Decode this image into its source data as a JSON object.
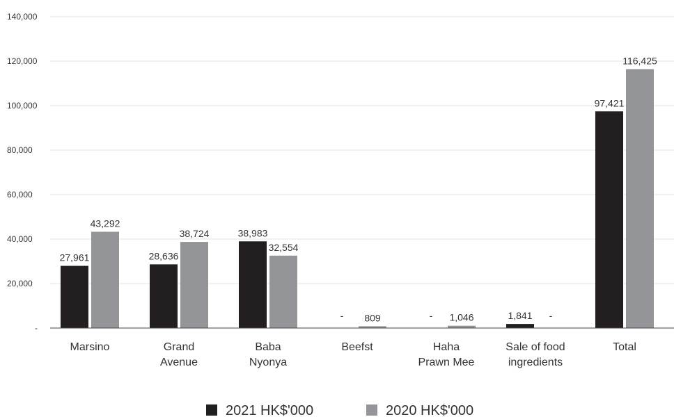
{
  "chart_data": {
    "type": "bar",
    "categories": [
      [
        "Marsino"
      ],
      [
        "Grand",
        "Avenue"
      ],
      [
        "Baba",
        "Nyonya"
      ],
      [
        "Beefst"
      ],
      [
        "Haha",
        "Prawn Mee"
      ],
      [
        "Sale of food",
        "ingredients"
      ],
      [
        "Total"
      ]
    ],
    "series": [
      {
        "name": "2021 HK$'000",
        "color": "#231f20",
        "values": [
          27961,
          28636,
          38983,
          null,
          null,
          1841,
          97421
        ],
        "labels": [
          "27,961",
          "28,636",
          "38,983",
          "-",
          "-",
          "1,841",
          "97,421"
        ]
      },
      {
        "name": "2020 HK$'000",
        "color": "#939598",
        "values": [
          43292,
          38724,
          32554,
          809,
          1046,
          null,
          116425
        ],
        "labels": [
          "43,292",
          "38,724",
          "32,554",
          "809",
          "1,046",
          "-",
          "116,425"
        ]
      }
    ],
    "ylim": [
      0,
      140000
    ],
    "yticks": [
      {
        "value": 0,
        "label": "-"
      },
      {
        "value": 20000,
        "label": "20,000"
      },
      {
        "value": 40000,
        "label": "40,000"
      },
      {
        "value": 60000,
        "label": "60,000"
      },
      {
        "value": 80000,
        "label": "80,000"
      },
      {
        "value": 100000,
        "label": "100,000"
      },
      {
        "value": 120000,
        "label": "120,000"
      },
      {
        "value": 140000,
        "label": "140,000"
      }
    ],
    "grid": true,
    "legend": "bottom-center"
  }
}
